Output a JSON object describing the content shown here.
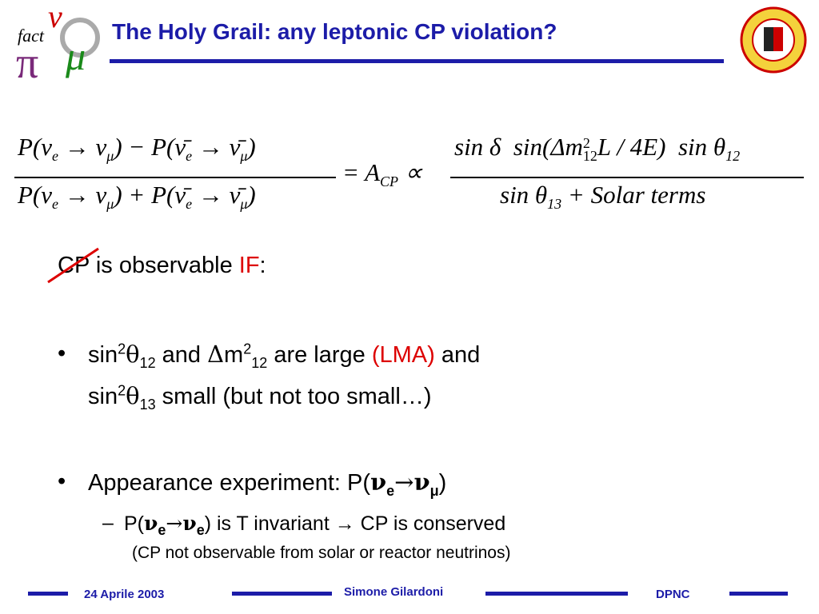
{
  "header": {
    "title": "The Holy Grail: any leptonic CP violation?",
    "logo": {
      "text": "fact",
      "glyphs": [
        "ν",
        "π",
        "μ"
      ]
    }
  },
  "formula": {
    "left_num": [
      "P(ν",
      "e",
      " → ν",
      "μ",
      ") − P(ν̄",
      "e",
      " → ν̄",
      "μ",
      ")"
    ],
    "left_den": [
      "P(ν",
      "e",
      " → ν",
      "μ",
      ") + P(ν̄",
      "e",
      " → ν̄",
      "μ",
      ")"
    ],
    "middle": [
      "= A",
      "CP",
      " ∝"
    ],
    "right_num": [
      "sin δ  sin(Δm",
      "2",
      "12",
      "L / 4E)  sin θ",
      "12"
    ],
    "right_den": [
      "sin θ",
      "13",
      " + Solar terms"
    ]
  },
  "body": {
    "cp_line": [
      "CP",
      " is observable ",
      "IF",
      ":"
    ],
    "bullet_marker": "•",
    "bullet1_line1": [
      "sin",
      "2",
      "θ",
      "12",
      " and ",
      "Δ",
      "m",
      "2",
      "12",
      " are large ",
      "(LMA)",
      " and"
    ],
    "bullet1_line2": [
      "sin",
      "2",
      "θ",
      "13",
      " small (but not too small…)"
    ],
    "bullet2": [
      "Appearance experiment: P(",
      "ν",
      "e",
      "→",
      "ν",
      "μ",
      ")"
    ],
    "sub_marker": "–",
    "sub_bullet": [
      "P(",
      "ν",
      "e",
      "→",
      "ν",
      "e",
      ") is T invariant → CP is conserved"
    ],
    "note": "(CP not observable from solar or reactor neutrinos)"
  },
  "footer": {
    "date": "24 Aprile 2003",
    "author": "Simone Gilardoni",
    "institute": "DPNC"
  }
}
